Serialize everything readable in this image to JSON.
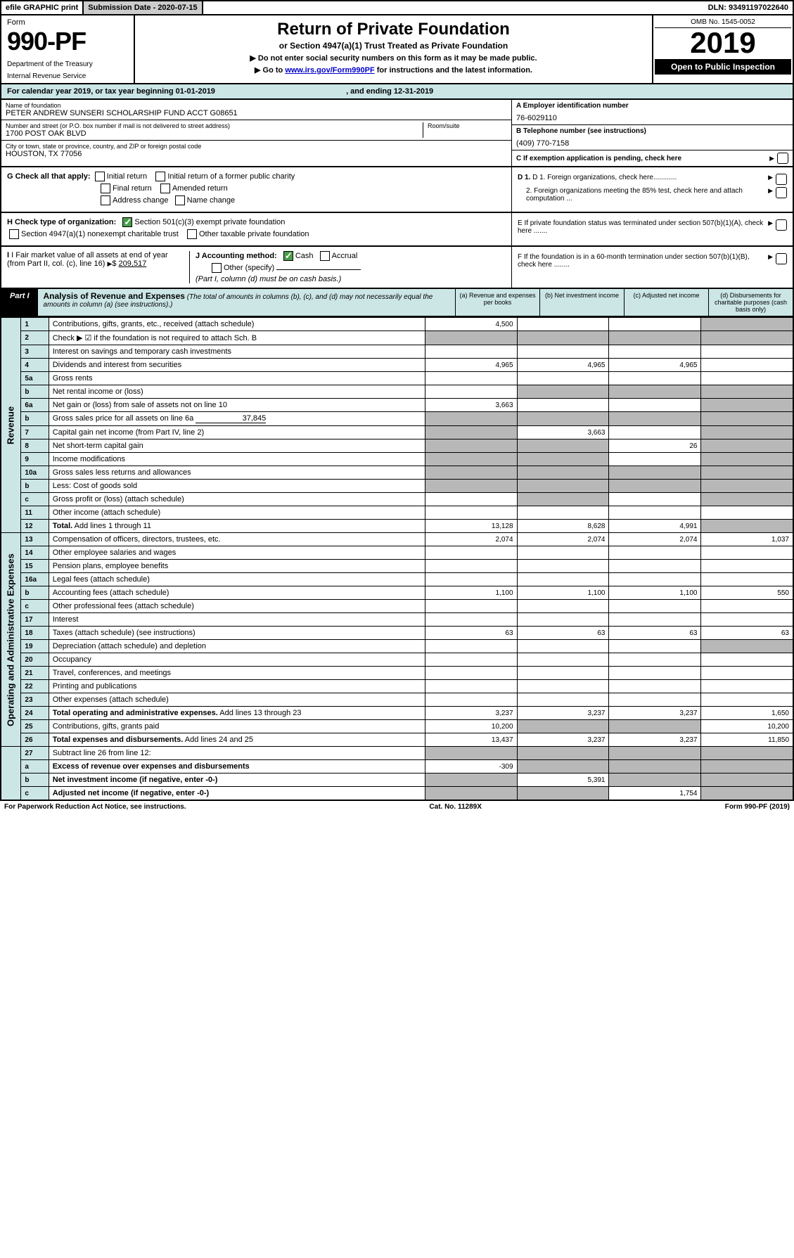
{
  "topbar": {
    "efile": "efile GRAPHIC print",
    "submission": "Submission Date - 2020-07-15",
    "dln": "DLN: 93491197022640"
  },
  "header": {
    "form_label": "Form",
    "form_number": "990-PF",
    "dept1": "Department of the Treasury",
    "dept2": "Internal Revenue Service",
    "title": "Return of Private Foundation",
    "subtitle": "or Section 4947(a)(1) Trust Treated as Private Foundation",
    "note1": "▶ Do not enter social security numbers on this form as it may be made public.",
    "note2_pre": "▶ Go to ",
    "note2_link": "www.irs.gov/Form990PF",
    "note2_post": " for instructions and the latest information.",
    "omb": "OMB No. 1545-0052",
    "year": "2019",
    "open": "Open to Public Inspection"
  },
  "calendar": {
    "text_pre": "For calendar year 2019, or tax year beginning ",
    "begin": "01-01-2019",
    "mid": " , and ending ",
    "end": "12-31-2019"
  },
  "info": {
    "name_label": "Name of foundation",
    "name": "PETER ANDREW SUNSERI SCHOLARSHIP FUND ACCT G08651",
    "addr_label": "Number and street (or P.O. box number if mail is not delivered to street address)",
    "addr": "1700 POST OAK BLVD",
    "room_label": "Room/suite",
    "city_label": "City or town, state or province, country, and ZIP or foreign postal code",
    "city": "HOUSTON, TX  77056",
    "a_label": "A Employer identification number",
    "a_val": "76-6029110",
    "b_label": "B Telephone number (see instructions)",
    "b_val": "(409) 770-7158",
    "c_label": "C If exemption application is pending, check here"
  },
  "checks": {
    "g_label": "G Check all that apply:",
    "g1": "Initial return",
    "g2": "Initial return of a former public charity",
    "g3": "Final return",
    "g4": "Amended return",
    "g5": "Address change",
    "g6": "Name change",
    "h_label": "H Check type of organization:",
    "h1": "Section 501(c)(3) exempt private foundation",
    "h2": "Section 4947(a)(1) nonexempt charitable trust",
    "h3": "Other taxable private foundation",
    "i_label": "I Fair market value of all assets at end of year (from Part II, col. (c), line 16)",
    "i_val": "209,517",
    "j_label": "J Accounting method:",
    "j1": "Cash",
    "j2": "Accrual",
    "j3": "Other (specify)",
    "j_note": "(Part I, column (d) must be on cash basis.)",
    "d1": "D 1. Foreign organizations, check here............",
    "d2": "2. Foreign organizations meeting the 85% test, check here and attach computation ...",
    "e": "E If private foundation status was terminated under section 507(b)(1)(A), check here .......",
    "f": "F If the foundation is in a 60-month termination under section 507(b)(1)(B), check here ........"
  },
  "part1": {
    "label": "Part I",
    "title": "Analysis of Revenue and Expenses",
    "title_note": " (The total of amounts in columns (b), (c), and (d) may not necessarily equal the amounts in column (a) (see instructions).)",
    "col_a": "(a) Revenue and expenses per books",
    "col_b": "(b) Net investment income",
    "col_c": "(c) Adjusted net income",
    "col_d": "(d) Disbursements for charitable purposes (cash basis only)"
  },
  "side": {
    "revenue": "Revenue",
    "expenses": "Operating and Administrative Expenses"
  },
  "rows": {
    "r1": {
      "n": "1",
      "d": "Contributions, gifts, grants, etc., received (attach schedule)",
      "a": "4,500"
    },
    "r2": {
      "n": "2",
      "d": "Check ▶ ☑ if the foundation is not required to attach Sch. B"
    },
    "r3": {
      "n": "3",
      "d": "Interest on savings and temporary cash investments"
    },
    "r4": {
      "n": "4",
      "d": "Dividends and interest from securities",
      "a": "4,965",
      "b": "4,965",
      "c": "4,965"
    },
    "r5a": {
      "n": "5a",
      "d": "Gross rents"
    },
    "r5b": {
      "n": "b",
      "d": "Net rental income or (loss)"
    },
    "r6a": {
      "n": "6a",
      "d": "Net gain or (loss) from sale of assets not on line 10",
      "a": "3,663"
    },
    "r6b": {
      "n": "b",
      "d": "Gross sales price for all assets on line 6a",
      "inline": "37,845"
    },
    "r7": {
      "n": "7",
      "d": "Capital gain net income (from Part IV, line 2)",
      "b": "3,663"
    },
    "r8": {
      "n": "8",
      "d": "Net short-term capital gain",
      "c": "26"
    },
    "r9": {
      "n": "9",
      "d": "Income modifications"
    },
    "r10a": {
      "n": "10a",
      "d": "Gross sales less returns and allowances"
    },
    "r10b": {
      "n": "b",
      "d": "Less: Cost of goods sold"
    },
    "r10c": {
      "n": "c",
      "d": "Gross profit or (loss) (attach schedule)"
    },
    "r11": {
      "n": "11",
      "d": "Other income (attach schedule)"
    },
    "r12": {
      "n": "12",
      "d": "Total. Add lines 1 through 11",
      "a": "13,128",
      "b": "8,628",
      "c": "4,991"
    },
    "r13": {
      "n": "13",
      "d": "Compensation of officers, directors, trustees, etc.",
      "a": "2,074",
      "b": "2,074",
      "c": "2,074",
      "dd": "1,037"
    },
    "r14": {
      "n": "14",
      "d": "Other employee salaries and wages"
    },
    "r15": {
      "n": "15",
      "d": "Pension plans, employee benefits"
    },
    "r16a": {
      "n": "16a",
      "d": "Legal fees (attach schedule)"
    },
    "r16b": {
      "n": "b",
      "d": "Accounting fees (attach schedule)",
      "a": "1,100",
      "b": "1,100",
      "c": "1,100",
      "dd": "550"
    },
    "r16c": {
      "n": "c",
      "d": "Other professional fees (attach schedule)"
    },
    "r17": {
      "n": "17",
      "d": "Interest"
    },
    "r18": {
      "n": "18",
      "d": "Taxes (attach schedule) (see instructions)",
      "a": "63",
      "b": "63",
      "c": "63",
      "dd": "63"
    },
    "r19": {
      "n": "19",
      "d": "Depreciation (attach schedule) and depletion"
    },
    "r20": {
      "n": "20",
      "d": "Occupancy"
    },
    "r21": {
      "n": "21",
      "d": "Travel, conferences, and meetings"
    },
    "r22": {
      "n": "22",
      "d": "Printing and publications"
    },
    "r23": {
      "n": "23",
      "d": "Other expenses (attach schedule)"
    },
    "r24": {
      "n": "24",
      "d": "Total operating and administrative expenses. Add lines 13 through 23",
      "a": "3,237",
      "b": "3,237",
      "c": "3,237",
      "dd": "1,650"
    },
    "r25": {
      "n": "25",
      "d": "Contributions, gifts, grants paid",
      "a": "10,200",
      "dd": "10,200"
    },
    "r26": {
      "n": "26",
      "d": "Total expenses and disbursements. Add lines 24 and 25",
      "a": "13,437",
      "b": "3,237",
      "c": "3,237",
      "dd": "11,850"
    },
    "r27": {
      "n": "27",
      "d": "Subtract line 26 from line 12:"
    },
    "r27a": {
      "n": "a",
      "d": "Excess of revenue over expenses and disbursements",
      "a": "-309"
    },
    "r27b": {
      "n": "b",
      "d": "Net investment income (if negative, enter -0-)",
      "b": "5,391"
    },
    "r27c": {
      "n": "c",
      "d": "Adjusted net income (if negative, enter -0-)",
      "c": "1,754"
    }
  },
  "footer": {
    "left": "For Paperwork Reduction Act Notice, see instructions.",
    "mid": "Cat. No. 11289X",
    "right": "Form 990-PF (2019)"
  }
}
